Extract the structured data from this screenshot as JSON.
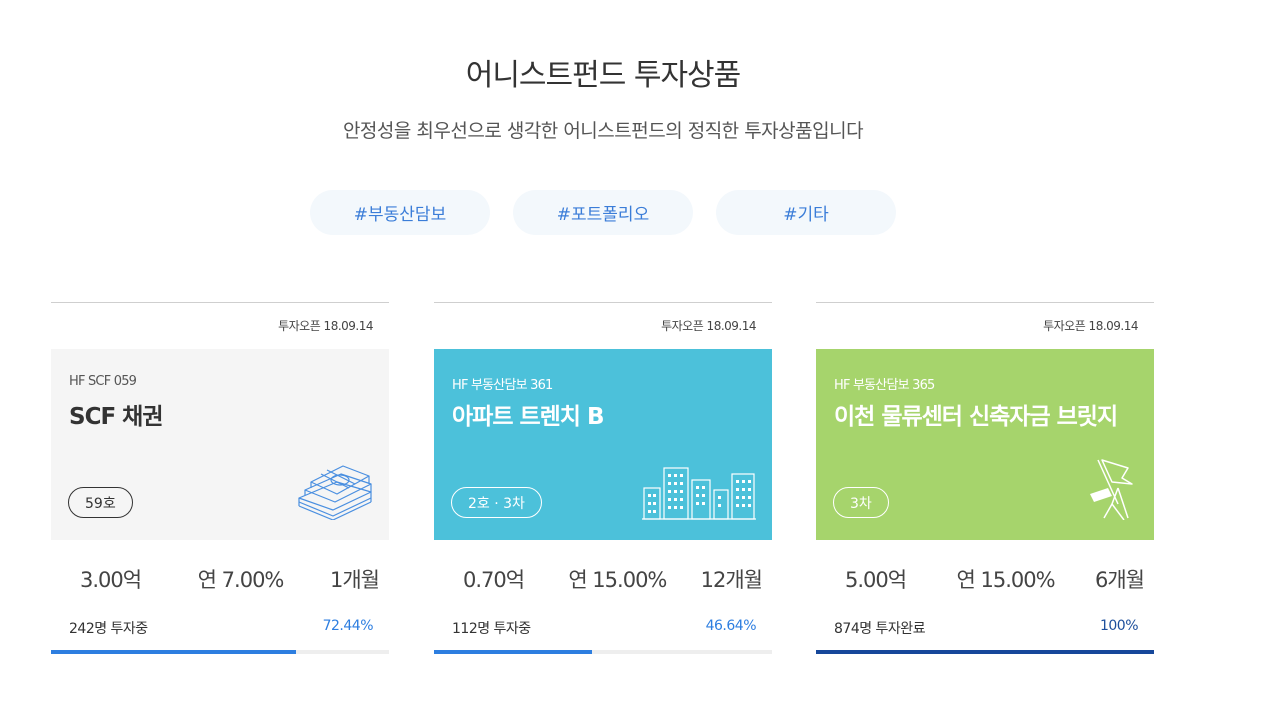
{
  "header": {
    "title": "어니스트펀드 투자상품",
    "subtitle": "안정성을 최우선으로 생각한 어니스트펀드의 정직한 투자상품입니다"
  },
  "tags": [
    {
      "label": "#부동산담보"
    },
    {
      "label": "#포트폴리오"
    },
    {
      "label": "#기타"
    }
  ],
  "products": [
    {
      "open_date": "투자오픈 18.09.14",
      "code": "HF SCF 059",
      "name": "SCF 채권",
      "badge": "59호",
      "amount": "3.00억",
      "yield": "연 7.00%",
      "term": "1개월",
      "investors": "242명 투자중",
      "rate": "72.44%",
      "progress": 72.44,
      "icon": "money-stack-icon",
      "panel_color": "#f5f5f5"
    },
    {
      "open_date": "투자오픈 18.09.14",
      "code": "HF 부동산담보 361",
      "name": "아파트 트렌치 B",
      "badge": "2호 · 3차",
      "amount": "0.70억",
      "yield": "연 15.00%",
      "term": "12개월",
      "investors": "112명 투자중",
      "rate": "46.64%",
      "progress": 46.64,
      "icon": "buildings-icon",
      "panel_color": "#4cc1da"
    },
    {
      "open_date": "투자오픈 18.09.14",
      "code": "HF 부동산담보 365",
      "name": "이천 물류센터 신축자금 브릿지",
      "badge": "3차",
      "amount": "5.00억",
      "yield": "연 15.00%",
      "term": "6개월",
      "investors": "874명 투자완료",
      "rate": "100%",
      "progress": 100,
      "icon": "construction-flag-icon",
      "panel_color": "#a6d46c"
    }
  ]
}
